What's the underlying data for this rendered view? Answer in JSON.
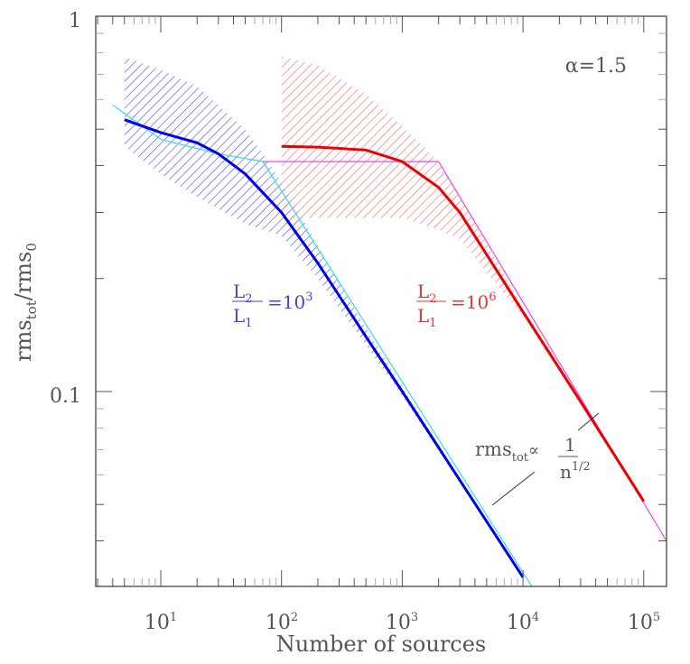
{
  "chart_data": {
    "type": "line",
    "title": "",
    "annotation_alpha": "α=1.5",
    "xlabel": "Number of sources",
    "ylabel": "rms_tot/rms_0",
    "xscale": "log",
    "yscale": "log",
    "xlim": [
      2.9,
      154000
    ],
    "ylim": [
      0.03,
      1
    ],
    "x_ticks": [
      "10^1",
      "10^2",
      "10^3",
      "10^4",
      "10^5"
    ],
    "y_ticks": [
      "0.1",
      "1"
    ],
    "grid": false,
    "series": [
      {
        "name": "L2/L1 = 10^3 (median)",
        "color": "#0000ee",
        "x": [
          5,
          10,
          20,
          30,
          50,
          100,
          200,
          500,
          1000,
          3000,
          10000
        ],
        "y": [
          0.53,
          0.49,
          0.46,
          0.43,
          0.38,
          0.3,
          0.22,
          0.14,
          0.1,
          0.058,
          0.032
        ]
      },
      {
        "name": "L2/L1 = 10^3 (spread band)",
        "color": "#5555dd",
        "x": [
          5,
          10,
          20,
          50,
          70,
          100,
          200,
          500,
          1000,
          3000,
          10000
        ],
        "upper": [
          0.78,
          0.72,
          0.65,
          0.5,
          0.43,
          0.36,
          0.245,
          0.147,
          0.103,
          0.059,
          0.0322
        ],
        "lower": [
          0.45,
          0.38,
          0.33,
          0.28,
          0.27,
          0.26,
          0.2,
          0.133,
          0.097,
          0.057,
          0.0318
        ]
      },
      {
        "name": "L2/L1 = 10^3 (analytic)",
        "color": "#33ddee",
        "x": [
          4,
          10,
          30,
          70,
          12000
        ],
        "y": [
          0.58,
          0.47,
          0.43,
          0.41,
          0.03
        ]
      },
      {
        "name": "L2/L1 = 10^6 (median)",
        "color": "#ee0000",
        "x": [
          100,
          200,
          500,
          1000,
          2000,
          3000,
          10000,
          30000,
          100000
        ],
        "y": [
          0.45,
          0.448,
          0.44,
          0.41,
          0.35,
          0.3,
          0.163,
          0.094,
          0.051
        ]
      },
      {
        "name": "L2/L1 = 10^6 (spread band)",
        "color": "#ee5555",
        "x": [
          100,
          200,
          500,
          1000,
          2000,
          3000,
          10000,
          30000,
          100000
        ],
        "upper": [
          0.78,
          0.74,
          0.62,
          0.51,
          0.41,
          0.33,
          0.167,
          0.096,
          0.052
        ],
        "lower": [
          0.29,
          0.29,
          0.29,
          0.29,
          0.27,
          0.255,
          0.158,
          0.092,
          0.05
        ]
      },
      {
        "name": "L2/L1 = 10^6 (analytic)",
        "color": "#ee44ee",
        "x": [
          70,
          2000,
          154000
        ],
        "y": [
          0.41,
          0.41,
          0.04
        ]
      }
    ],
    "labels": {
      "blue_ratio": {
        "num": "L",
        "num_sub": "2",
        "den": "L",
        "den_sub": "1",
        "rhs": "=10",
        "rhs_sup": "3"
      },
      "red_ratio": {
        "num": "L",
        "num_sub": "2",
        "den": "L",
        "den_sub": "1",
        "rhs": "=10",
        "rhs_sup": "6"
      },
      "scaling": {
        "lhs": "rms",
        "lhs_sub": "tot",
        "prop": "∝",
        "num": "1",
        "den": "n",
        "den_sup": "1/2"
      }
    }
  },
  "axes": {
    "x_tick_base": "10",
    "x_tick_exps": [
      "1",
      "2",
      "3",
      "4",
      "5"
    ],
    "y_tick_labels": [
      "1",
      "0.1"
    ],
    "xlabel": "Number of sources",
    "ylabel_main": "rms",
    "ylabel_sub1": "tot",
    "ylabel_slash": "/rms",
    "ylabel_sub2": "0"
  },
  "annotation": {
    "alpha": "α=1.5"
  }
}
